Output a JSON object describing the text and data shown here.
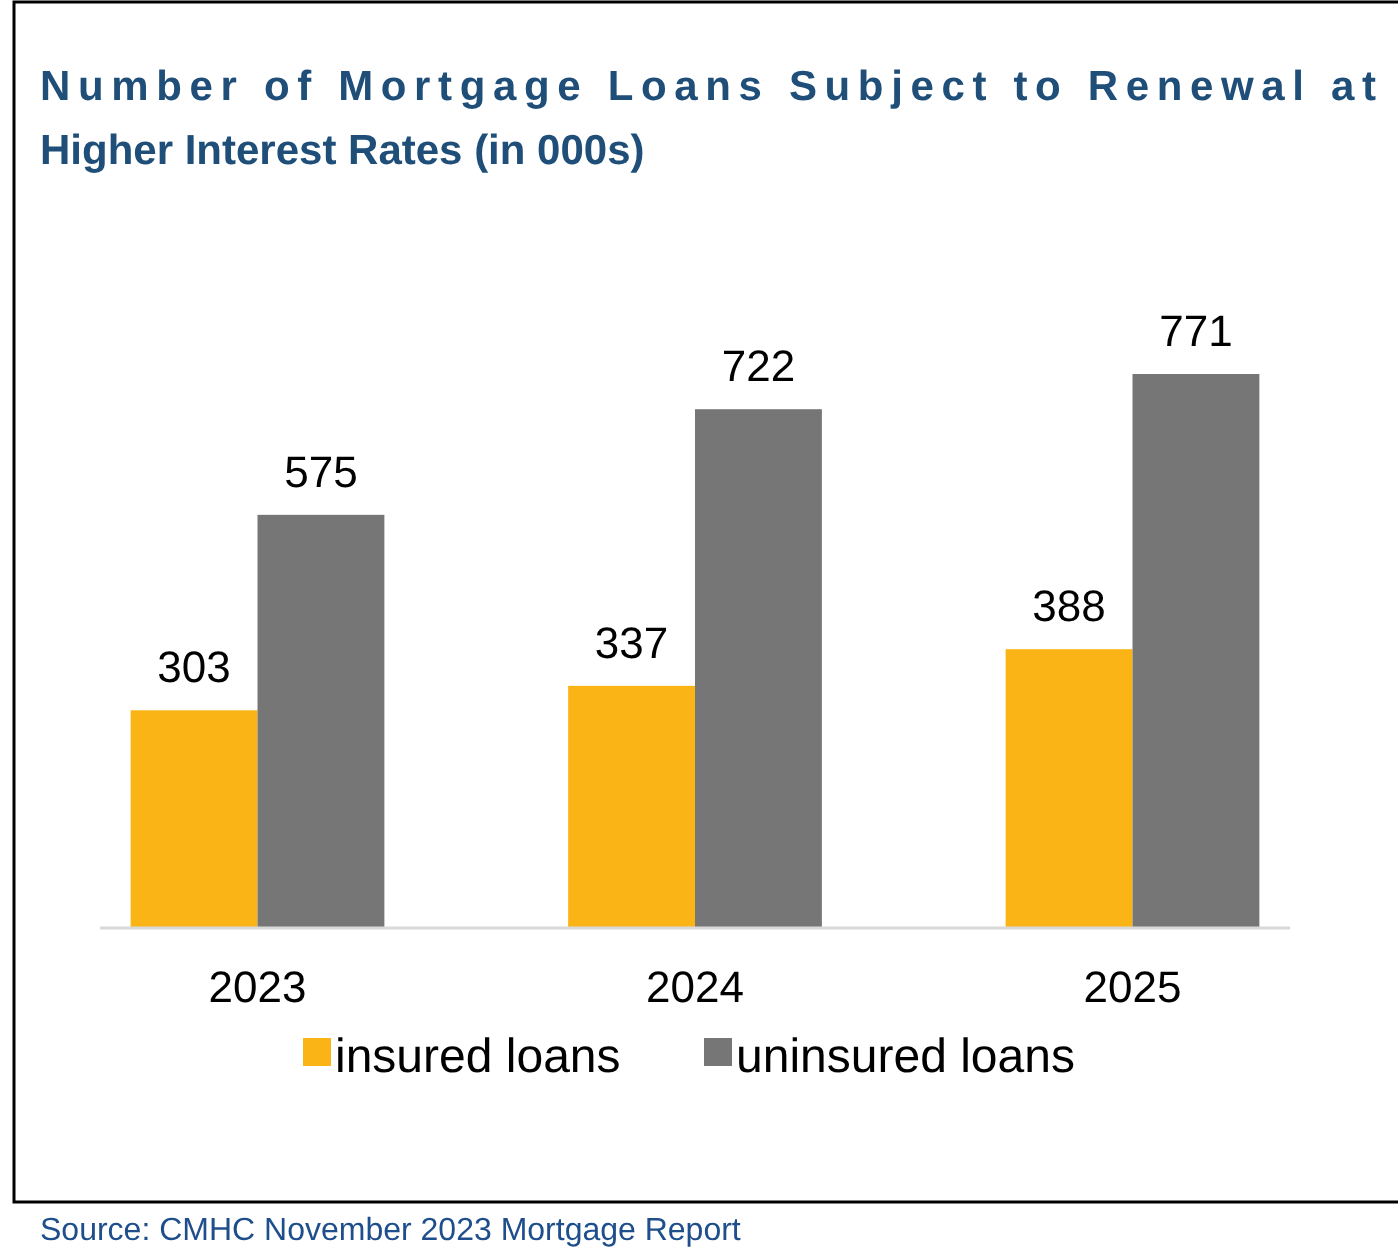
{
  "chart_data": {
    "type": "bar",
    "title": "Number of Mortgage Loans Subject to Renewal at Higher Interest Rates (in 000s)",
    "categories": [
      "2023",
      "2024",
      "2025"
    ],
    "series": [
      {
        "name": "insured loans",
        "color": "#fbb416",
        "values": [
          303,
          337,
          388
        ]
      },
      {
        "name": "uninsured loans",
        "color": "#767676",
        "values": [
          575,
          722,
          771
        ]
      }
    ],
    "data_labels": true,
    "legend": "bottom",
    "annotations": [
      "Source: CMHC November 2023 Mortgage Report"
    ]
  }
}
